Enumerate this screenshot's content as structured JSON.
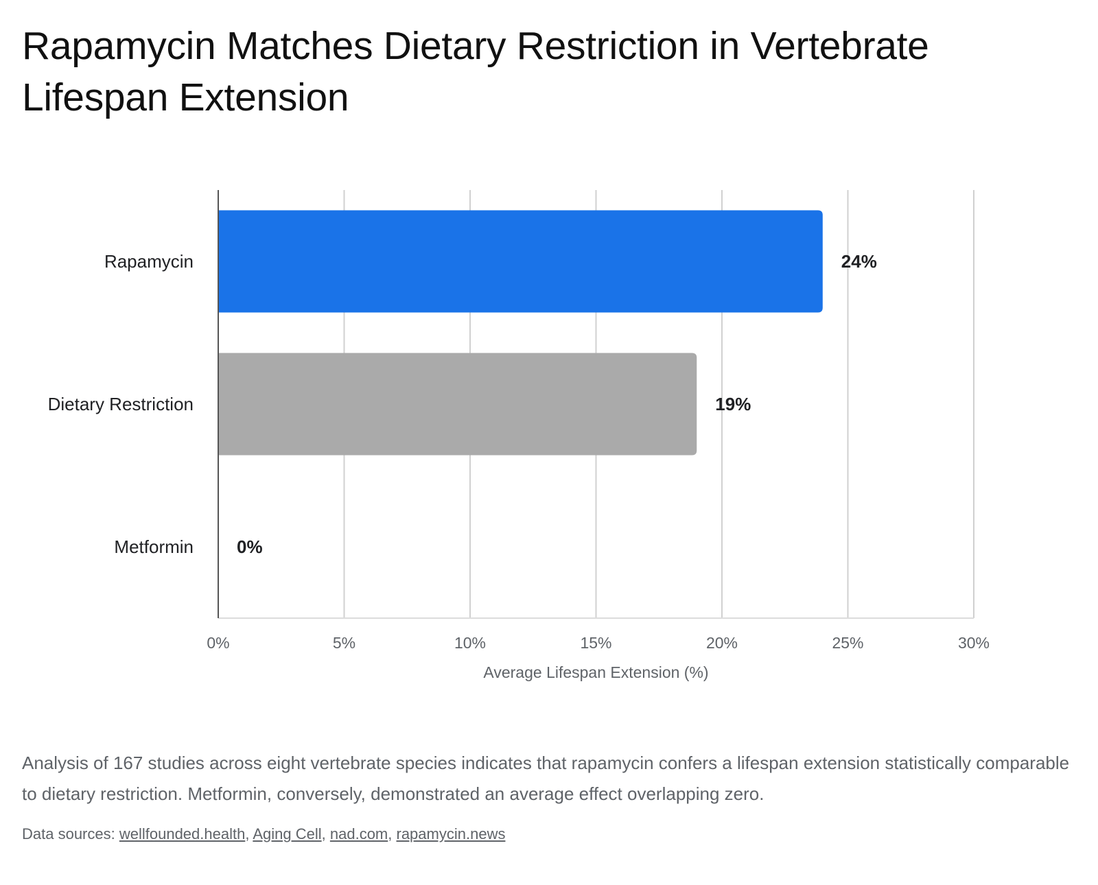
{
  "title": "Rapamycin Matches Dietary Restriction in Vertebrate Lifespan Extension",
  "caption": "Analysis of 167 studies across eight vertebrate species indicates that rapamycin confers a lifespan extension statistically comparable to dietary restriction. Metformin, conversely, demonstrated an average effect overlapping zero.",
  "sources": {
    "label": "Data sources:",
    "links": [
      "wellfounded.health",
      "Aging Cell",
      "nad.com",
      "rapamycin.news"
    ]
  },
  "colors": {
    "rapamycin": "#1a73e8",
    "dietary_restriction": "#aaaaaa",
    "metformin": "#aaaaaa",
    "grid": "#d0d0d0",
    "axis": "#555555"
  },
  "chart_data": {
    "type": "bar",
    "orientation": "horizontal",
    "categories": [
      "Rapamycin",
      "Dietary Restriction",
      "Metformin"
    ],
    "values": [
      24,
      19,
      0
    ],
    "data_labels": [
      "24%",
      "19%",
      "0%"
    ],
    "xlabel": "Average Lifespan Extension (%)",
    "ylabel": "",
    "xlim": [
      0,
      30
    ],
    "xticks": [
      0,
      5,
      10,
      15,
      20,
      25,
      30
    ],
    "xtick_labels": [
      "0%",
      "5%",
      "10%",
      "15%",
      "20%",
      "25%",
      "30%"
    ],
    "grid": "vertical",
    "legend": "none"
  }
}
